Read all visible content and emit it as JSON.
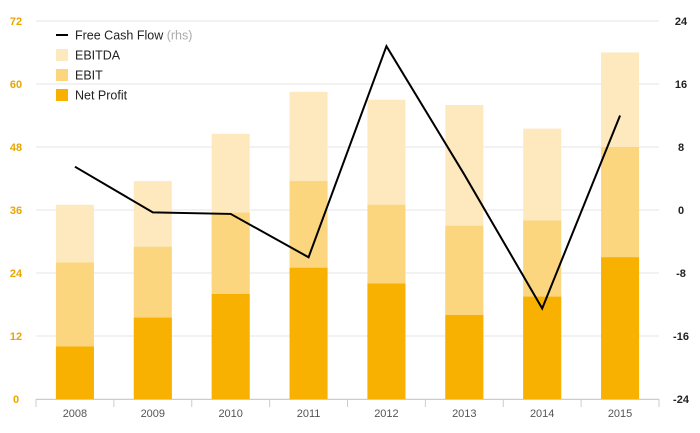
{
  "chart_data": {
    "type": "bar",
    "categories": [
      "2008",
      "2009",
      "2010",
      "2011",
      "2012",
      "2013",
      "2014",
      "2015"
    ],
    "series": [
      {
        "name": "EBITDA",
        "kind": "bar",
        "axis": "left",
        "color": "#fde9bd",
        "values": [
          37,
          41.5,
          50.5,
          58.5,
          57,
          56,
          51.5,
          66
        ]
      },
      {
        "name": "EBIT",
        "kind": "bar",
        "axis": "left",
        "color": "#fcd67e",
        "values": [
          26,
          29,
          35.5,
          41.5,
          37,
          33,
          34,
          48
        ]
      },
      {
        "name": "Net Profit",
        "kind": "bar",
        "axis": "left",
        "color": "#f8b100",
        "values": [
          10,
          15.5,
          20,
          25,
          22,
          16,
          19.5,
          27
        ]
      },
      {
        "name": "Free Cash Flow",
        "kind": "line",
        "axis": "right",
        "color": "#000000",
        "values": [
          5.5,
          -0.3,
          -0.5,
          -6,
          20.8,
          4.5,
          -12.5,
          12
        ]
      }
    ],
    "legend": {
      "items": [
        {
          "label": "Free Cash Flow",
          "suffix": "(rhs)",
          "marker": "line",
          "color": "#000000"
        },
        {
          "label": "EBITDA",
          "marker": "square",
          "color": "#fde9bd"
        },
        {
          "label": "EBIT",
          "marker": "square",
          "color": "#fcd67e"
        },
        {
          "label": "Net Profit",
          "marker": "square",
          "color": "#f8b100"
        }
      ],
      "placement": "top-left"
    },
    "y_left": {
      "ylim": [
        0,
        72
      ],
      "ticks": [
        "0",
        "12",
        "24",
        "36",
        "48",
        "60",
        "72"
      ],
      "color": "#e8a600"
    },
    "y_right": {
      "ylim": [
        -24,
        24
      ],
      "ticks": [
        "-24",
        "-16",
        "-8",
        "0",
        "8",
        "16",
        "24"
      ],
      "color": "#222222"
    },
    "grid": true
  }
}
